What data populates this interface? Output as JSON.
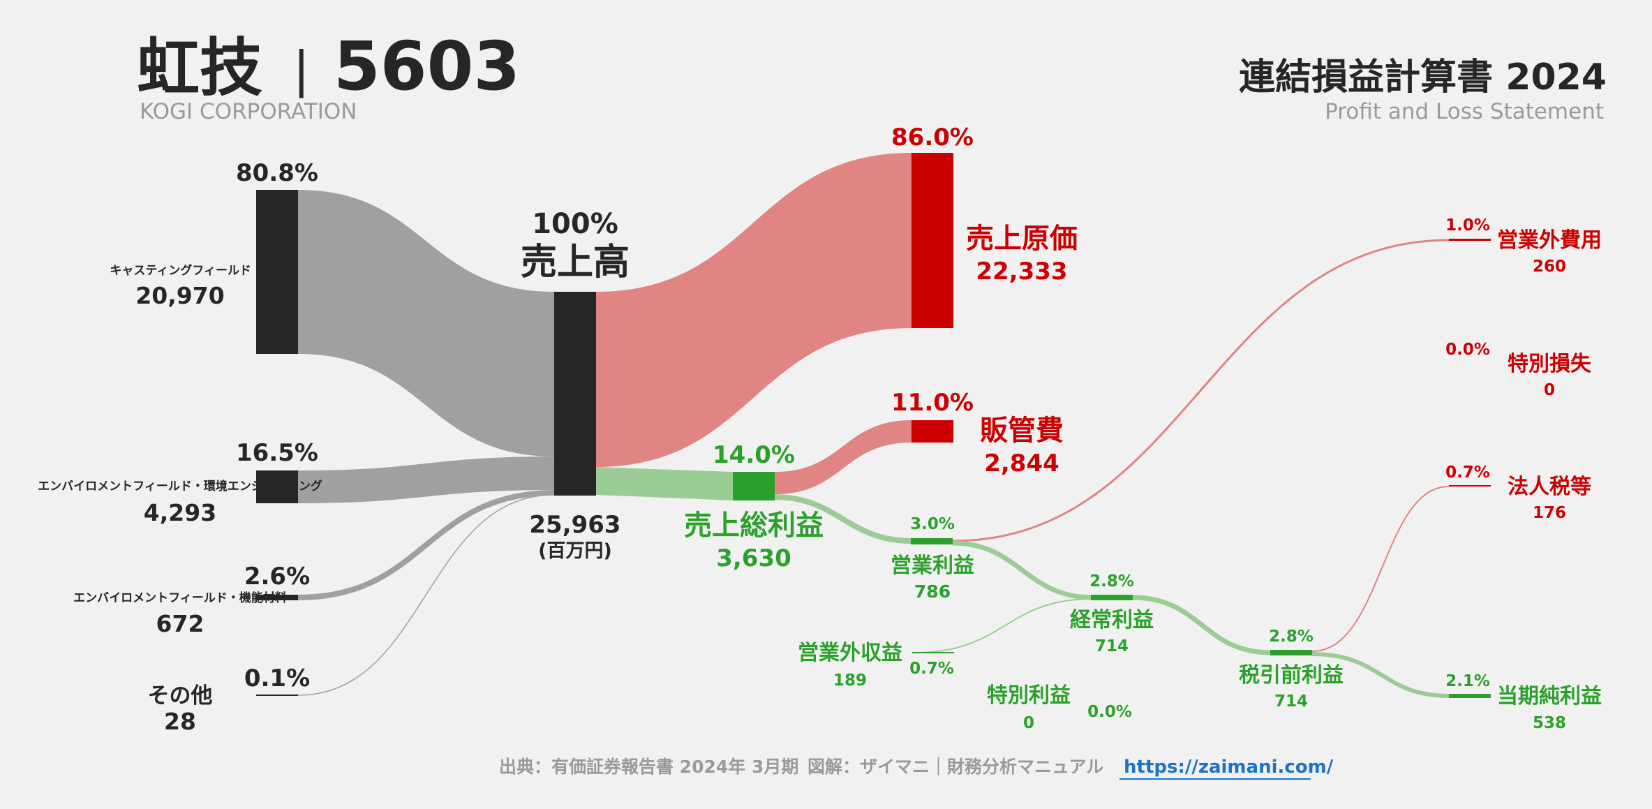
{
  "header": {
    "company": "虹技",
    "separator": "|",
    "code": "5603",
    "company_en": "KOGI CORPORATION",
    "statement": "連結損益計算書 2024",
    "statement_en": "Profit and Loss Statement"
  },
  "footer": {
    "source": "出典：有価証券報告書 2024年 3月期",
    "credit": "図解：ザイマニ｜財務分析マニュアル",
    "url": "https://zaimani.com/"
  },
  "chart_data": {
    "type": "sankey",
    "unit": "(百万円)",
    "revenue": {
      "label": "売上高",
      "pct": "100%",
      "value": "25,963",
      "unit": "(百万円)",
      "amount": 25963
    },
    "segments": [
      {
        "label": "キャスティングフィールド",
        "pct": "80.8%",
        "value": "20,970",
        "amount": 20970
      },
      {
        "label": "エンバイロメントフィールド・環境エンジニアリング",
        "pct": "16.5%",
        "value": "4,293",
        "amount": 4293
      },
      {
        "label": "エンバイロメントフィールド・機能材料",
        "pct": "2.6%",
        "value": "672",
        "amount": 672
      },
      {
        "label": "その他",
        "pct": "0.1%",
        "value": "28",
        "amount": 28
      }
    ],
    "cost_of_sales": {
      "label": "売上原価",
      "pct": "86.0%",
      "value": "22,333",
      "amount": 22333
    },
    "gross_profit": {
      "label": "売上総利益",
      "pct": "14.0%",
      "value": "3,630",
      "amount": 3630
    },
    "sga": {
      "label": "販管費",
      "pct": "11.0%",
      "value": "2,844",
      "amount": 2844
    },
    "operating_income": {
      "label": "営業利益",
      "pct": "3.0%",
      "value": "786",
      "amount": 786
    },
    "non_operating_expense": {
      "label": "営業外費用",
      "pct": "1.0%",
      "value": "260",
      "amount": 260
    },
    "non_operating_income": {
      "label": "営業外収益",
      "pct": "0.7%",
      "value": "189",
      "amount": 189
    },
    "ordinary_income": {
      "label": "経常利益",
      "pct": "2.8%",
      "value": "714",
      "amount": 714
    },
    "extraordinary_loss": {
      "label": "特別損失",
      "pct": "0.0%",
      "value": "0",
      "amount": 0
    },
    "extraordinary_income": {
      "label": "特別利益",
      "pct": "0.0%",
      "value": "0",
      "amount": 0
    },
    "pretax_income": {
      "label": "税引前利益",
      "pct": "2.8%",
      "value": "714",
      "amount": 714
    },
    "income_taxes": {
      "label": "法人税等",
      "pct": "0.7%",
      "value": "176",
      "amount": 176
    },
    "net_income": {
      "label": "当期純利益",
      "pct": "2.1%",
      "value": "538",
      "amount": 538
    },
    "colors": {
      "segment_node": "#262626",
      "segment_flow": "#a0a0a0",
      "cost": "#cc0000",
      "cost_flow": "#e08484",
      "profit": "#2ca02c",
      "profit_flow": "#9ccc96",
      "muted": "#9a9a9a"
    }
  }
}
